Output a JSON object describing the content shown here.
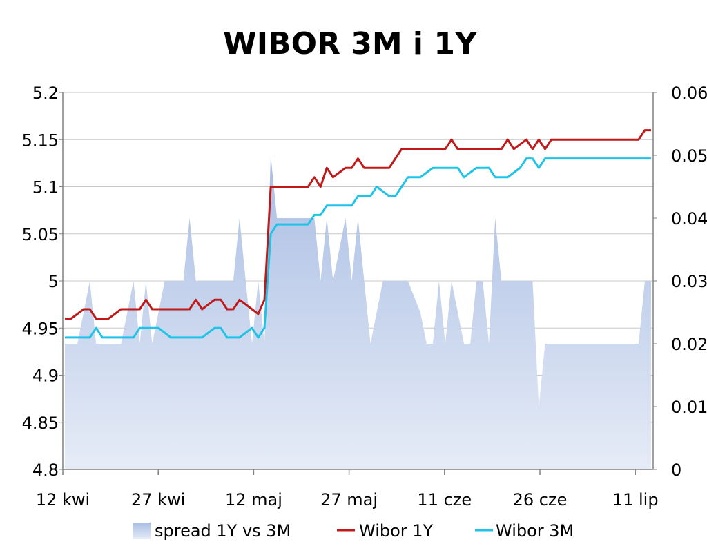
{
  "chart_data": {
    "type": "line",
    "title": "WIBOR 3M i 1Y",
    "legend_position": "bottom",
    "grid": "horizontal",
    "colors": {
      "spread_top": "#a9bde3",
      "spread_bottom": "#e6ecf7",
      "wibor_1y": "#c0191a",
      "wibor_3m": "#1ec3e6",
      "grid": "#c8c8c8",
      "axis": "#808080"
    },
    "x_ticks": [
      "12 kwi",
      "27 kwi",
      "12 maj",
      "27 maj",
      "11 cze",
      "26 cze",
      "11 lip"
    ],
    "y_left": {
      "min": 4.8,
      "max": 5.2,
      "ticks": [
        "5.2",
        "5.15",
        "5.1",
        "5.05",
        "5",
        "4.95",
        "4.9",
        "4.85",
        "4.8"
      ]
    },
    "y_right": {
      "min": 0,
      "max": 0.06,
      "ticks": [
        "0.06",
        "0.05",
        "0.04",
        "0.03",
        "0.02",
        "0.01",
        "0"
      ]
    },
    "x_range": [
      0,
      94
    ],
    "series": [
      {
        "name": "spread 1Y vs 3M",
        "axis": "right",
        "kind": "area",
        "x": [
          0,
          2,
          4,
          5,
          6,
          8,
          9,
          11,
          12,
          13,
          14,
          15,
          16,
          17,
          18,
          19,
          20,
          21,
          22,
          23,
          24,
          25,
          26,
          27,
          28,
          29,
          30,
          31,
          32,
          33,
          34,
          35,
          36,
          37,
          38,
          39,
          40,
          41,
          42,
          43,
          44,
          45,
          46,
          47,
          48,
          49,
          50,
          51,
          52,
          53,
          54,
          55,
          57,
          58,
          59,
          60,
          61,
          62,
          63,
          64,
          65,
          66,
          67,
          68,
          69,
          70,
          71,
          72,
          73,
          74,
          75,
          76,
          77,
          78,
          79,
          80,
          81,
          82,
          83,
          84,
          85,
          86,
          87,
          88,
          89,
          90,
          91,
          92,
          93,
          94
        ],
        "values": [
          0.02,
          0.02,
          0.03,
          0.02,
          0.02,
          0.02,
          0.02,
          0.03,
          0.02,
          0.03,
          0.02,
          0.025,
          0.03,
          0.03,
          0.03,
          0.03,
          0.04,
          0.03,
          0.03,
          0.03,
          0.03,
          0.03,
          0.03,
          0.03,
          0.04,
          0.03,
          0.02,
          0.03,
          0.02,
          0.05,
          0.04,
          0.04,
          0.04,
          0.04,
          0.04,
          0.04,
          0.04,
          0.03,
          0.04,
          0.03,
          0.035,
          0.04,
          0.03,
          0.04,
          0.03,
          0.02,
          0.025,
          0.03,
          0.03,
          0.03,
          0.03,
          0.03,
          0.025,
          0.02,
          0.02,
          0.03,
          0.02,
          0.03,
          0.025,
          0.02,
          0.02,
          0.03,
          0.03,
          0.02,
          0.04,
          0.03,
          0.03,
          0.03,
          0.03,
          0.03,
          0.03,
          0.01,
          0.02,
          0.02,
          0.02,
          0.02,
          0.02,
          0.02,
          0.02,
          0.02,
          0.02,
          0.02,
          0.02,
          0.02,
          0.02,
          0.02,
          0.02,
          0.02,
          0.03,
          0.03
        ]
      },
      {
        "name": "Wibor 1Y",
        "axis": "left",
        "kind": "line",
        "x": [
          0,
          1,
          2,
          3,
          4,
          5,
          6,
          7,
          8,
          9,
          10,
          11,
          12,
          13,
          14,
          15,
          16,
          17,
          18,
          19,
          20,
          21,
          22,
          23,
          24,
          25,
          26,
          27,
          28,
          29,
          30,
          31,
          32,
          33,
          34,
          35,
          36,
          37,
          38,
          39,
          40,
          41,
          42,
          43,
          44,
          45,
          46,
          47,
          48,
          49,
          50,
          51,
          52,
          53,
          54,
          55,
          56,
          57,
          58,
          59,
          60,
          61,
          62,
          63,
          64,
          65,
          66,
          67,
          68,
          69,
          70,
          71,
          72,
          73,
          74,
          75,
          76,
          77,
          78,
          79,
          80,
          81,
          82,
          83,
          84,
          85,
          86,
          87,
          88,
          89,
          90,
          91,
          92,
          93,
          94
        ],
        "values": [
          4.96,
          4.96,
          4.965,
          4.97,
          4.97,
          4.96,
          4.96,
          4.96,
          4.965,
          4.97,
          4.97,
          4.97,
          4.97,
          4.98,
          4.97,
          4.97,
          4.97,
          4.97,
          4.97,
          4.97,
          4.97,
          4.98,
          4.97,
          4.975,
          4.98,
          4.98,
          4.97,
          4.97,
          4.98,
          4.975,
          4.97,
          4.965,
          4.98,
          5.1,
          5.1,
          5.1,
          5.1,
          5.1,
          5.1,
          5.1,
          5.11,
          5.1,
          5.12,
          5.11,
          5.115,
          5.12,
          5.12,
          5.13,
          5.12,
          5.12,
          5.12,
          5.12,
          5.12,
          5.13,
          5.14,
          5.14,
          5.14,
          5.14,
          5.14,
          5.14,
          5.14,
          5.14,
          5.15,
          5.14,
          5.14,
          5.14,
          5.14,
          5.14,
          5.14,
          5.14,
          5.14,
          5.15,
          5.14,
          5.145,
          5.15,
          5.14,
          5.15,
          5.14,
          5.15,
          5.15,
          5.15,
          5.15,
          5.15,
          5.15,
          5.15,
          5.15,
          5.15,
          5.15,
          5.15,
          5.15,
          5.15,
          5.15,
          5.15,
          5.16,
          5.16
        ]
      },
      {
        "name": "Wibor 3M",
        "axis": "left",
        "kind": "line",
        "x": [
          0,
          1,
          2,
          3,
          4,
          5,
          6,
          7,
          8,
          9,
          10,
          11,
          12,
          13,
          14,
          15,
          16,
          17,
          18,
          19,
          20,
          21,
          22,
          23,
          24,
          25,
          26,
          27,
          28,
          29,
          30,
          31,
          32,
          33,
          34,
          35,
          36,
          37,
          38,
          39,
          40,
          41,
          42,
          43,
          44,
          45,
          46,
          47,
          48,
          49,
          50,
          51,
          52,
          53,
          54,
          55,
          56,
          57,
          58,
          59,
          60,
          61,
          62,
          63,
          64,
          65,
          66,
          67,
          68,
          69,
          70,
          71,
          72,
          73,
          74,
          75,
          76,
          77,
          78,
          79,
          80,
          81,
          82,
          83,
          84,
          85,
          86,
          87,
          88,
          89,
          90,
          91,
          92,
          93,
          94
        ],
        "values": [
          4.94,
          4.94,
          4.94,
          4.94,
          4.94,
          4.95,
          4.94,
          4.94,
          4.94,
          4.94,
          4.94,
          4.94,
          4.95,
          4.95,
          4.95,
          4.95,
          4.945,
          4.94,
          4.94,
          4.94,
          4.94,
          4.94,
          4.94,
          4.945,
          4.95,
          4.95,
          4.94,
          4.94,
          4.94,
          4.945,
          4.95,
          4.94,
          4.95,
          5.05,
          5.06,
          5.06,
          5.06,
          5.06,
          5.06,
          5.06,
          5.07,
          5.07,
          5.08,
          5.08,
          5.08,
          5.08,
          5.08,
          5.09,
          5.09,
          5.09,
          5.1,
          5.095,
          5.09,
          5.09,
          5.1,
          5.11,
          5.11,
          5.11,
          5.115,
          5.12,
          5.12,
          5.12,
          5.12,
          5.12,
          5.11,
          5.115,
          5.12,
          5.12,
          5.12,
          5.11,
          5.11,
          5.11,
          5.115,
          5.12,
          5.13,
          5.13,
          5.12,
          5.13,
          5.13,
          5.13,
          5.13,
          5.13,
          5.13,
          5.13,
          5.13,
          5.13,
          5.13,
          5.13,
          5.13,
          5.13,
          5.13,
          5.13,
          5.13,
          5.13,
          5.13
        ]
      }
    ]
  }
}
